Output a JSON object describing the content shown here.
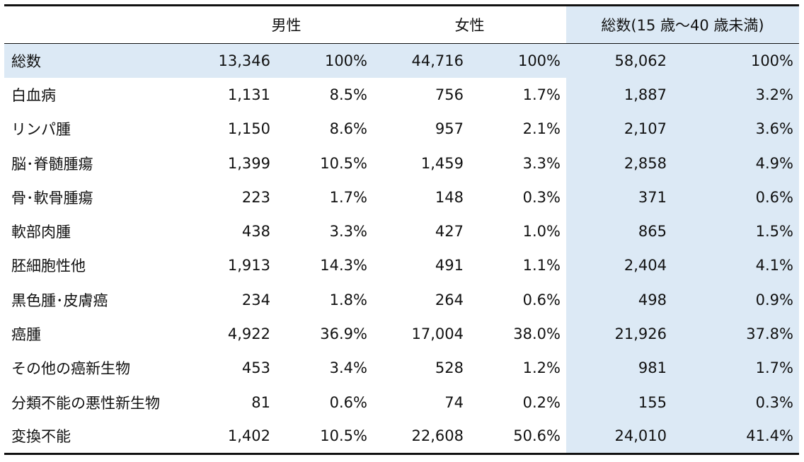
{
  "headers": {
    "male": "男性",
    "female": "女性",
    "total": "総数(15 歳～40 歳未満)"
  },
  "rows": [
    {
      "label": "総数",
      "male_n": "13,346",
      "male_pct": "100%",
      "female_n": "44,716",
      "female_pct": "100%",
      "total_n": "58,062",
      "total_pct": "100%"
    },
    {
      "label": "白血病",
      "male_n": "1,131",
      "male_pct": "8.5%",
      "female_n": "756",
      "female_pct": "1.7%",
      "total_n": "1,887",
      "total_pct": "3.2%"
    },
    {
      "label": "リンパ腫",
      "male_n": "1,150",
      "male_pct": "8.6%",
      "female_n": "957",
      "female_pct": "2.1%",
      "total_n": "2,107",
      "total_pct": "3.6%"
    },
    {
      "label": "脳･脊髄腫瘍",
      "male_n": "1,399",
      "male_pct": "10.5%",
      "female_n": "1,459",
      "female_pct": "3.3%",
      "total_n": "2,858",
      "total_pct": "4.9%"
    },
    {
      "label": "骨･軟骨腫瘍",
      "male_n": "223",
      "male_pct": "1.7%",
      "female_n": "148",
      "female_pct": "0.3%",
      "total_n": "371",
      "total_pct": "0.6%"
    },
    {
      "label": "軟部肉腫",
      "male_n": "438",
      "male_pct": "3.3%",
      "female_n": "427",
      "female_pct": "1.0%",
      "total_n": "865",
      "total_pct": "1.5%"
    },
    {
      "label": "胚細胞性他",
      "male_n": "1,913",
      "male_pct": "14.3%",
      "female_n": "491",
      "female_pct": "1.1%",
      "total_n": "2,404",
      "total_pct": "4.1%"
    },
    {
      "label": "黒色腫･皮膚癌",
      "male_n": "234",
      "male_pct": "1.8%",
      "female_n": "264",
      "female_pct": "0.6%",
      "total_n": "498",
      "total_pct": "0.9%"
    },
    {
      "label": "癌腫",
      "male_n": "4,922",
      "male_pct": "36.9%",
      "female_n": "17,004",
      "female_pct": "38.0%",
      "total_n": "21,926",
      "total_pct": "37.8%"
    },
    {
      "label": "その他の癌新生物",
      "male_n": "453",
      "male_pct": "3.4%",
      "female_n": "528",
      "female_pct": "1.2%",
      "total_n": "981",
      "total_pct": "1.7%"
    },
    {
      "label": "分類不能の悪性新生物",
      "male_n": "81",
      "male_pct": "0.6%",
      "female_n": "74",
      "female_pct": "0.2%",
      "total_n": "155",
      "total_pct": "0.3%"
    },
    {
      "label": "変換不能",
      "male_n": "1,402",
      "male_pct": "10.5%",
      "female_n": "22,608",
      "female_pct": "50.6%",
      "total_n": "24,010",
      "total_pct": "41.4%"
    }
  ],
  "colors": {
    "highlight": "#dce9f5",
    "rule": "#111111"
  }
}
